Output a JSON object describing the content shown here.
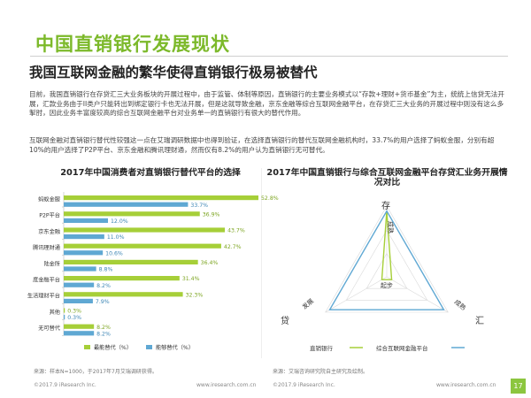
{
  "page_title": "中国直销银行发展现状",
  "subtitle": "我国互联网金融的繁华使得直销银行极易被替代",
  "paragraph_1": "目前，我国直销银行在存贷汇三大业务板块的开展过程中，由于监管、体制等原因，直销银行的主要业务模式以“存款+理财+货币基金”为主，统统上信贷无法开展，汇款业务由于II类户只能转出到绑定银行卡也无法开展，但是这就导致金融，京东金融等综合互联网金融平台，在存贷汇三大业务的开展过程中则没有这么多掣肘，因此业务丰富度较高的综合互联网金融平台对业务单一的直销银行有很大的替代作用。",
  "paragraph_2": "互联网金融对直销银行替代性较强这一点在艾瑞调研数据中也得到验证，在选择直销银行的替代互联网金融机构时，33.7%的用户选择了蚂蚁金服，分别有超10%的用户选择了P2P平台、京东金融和腾讯理财通，然而仅有8.2%的用户认为直销银行无可替代。",
  "left_chart": {
    "title": "2017年中国消费者对直销银行替代平台的选择",
    "source": "来源：样本N=1000，于2017年7月艾瑞调研获得。",
    "legend_green": "最能替代（%）",
    "legend_blue": "能够替代（%）"
  },
  "right_chart": {
    "title": "2017年中国直销银行与综合互联网金融平台存贷汇业务开展情况对比",
    "source": "来源：艾瑞咨询研究院自主研究及绘制。",
    "axis_labels": {
      "top": "存",
      "left": "贷",
      "right": "汇"
    },
    "level_labels": {
      "center": "起步",
      "top": "成熟",
      "left": "发展",
      "right": "成熟"
    },
    "legend_a": "直销银行",
    "legend_b": "综合互联网金融平台"
  },
  "chart_data": [
    {
      "type": "bar",
      "categories": [
        "蚂蚁金服",
        "P2P平台",
        "京东金融",
        "腾讯理财通",
        "陆金所",
        "度金融平台",
        "生活理财平台",
        "其他",
        "无可替代"
      ],
      "series": [
        {
          "name": "最能替代（%）",
          "values": [
            52.8,
            36.9,
            43.7,
            42.7,
            36.4,
            31.4,
            32.3,
            0.3,
            8.2
          ]
        },
        {
          "name": "能够替代（%）",
          "values": [
            33.7,
            12.0,
            11.0,
            10.6,
            8.8,
            8.2,
            7.9,
            0.3,
            8.2
          ]
        }
      ],
      "colors": [
        "#a6cf38",
        "#5fa8d3"
      ]
    },
    {
      "type": "radar",
      "axes": [
        "存",
        "汇",
        "贷"
      ],
      "series": [
        {
          "name": "直销银行",
          "values": [
            0.93,
            0.08,
            0.08
          ],
          "color": "#a6cf38"
        },
        {
          "name": "综合互联网金融平台",
          "values": [
            0.93,
            0.93,
            0.93
          ],
          "color": "#5fa8d3"
        }
      ]
    }
  ],
  "footer": {
    "left_copyright": "©2017.9 iResearch Inc.",
    "left_url": "www.iresearch.com.cn",
    "right_copyright": "©2017.9 iResearch Inc.",
    "right_url": "www.iresearch.com.cn",
    "page_number": "17"
  }
}
